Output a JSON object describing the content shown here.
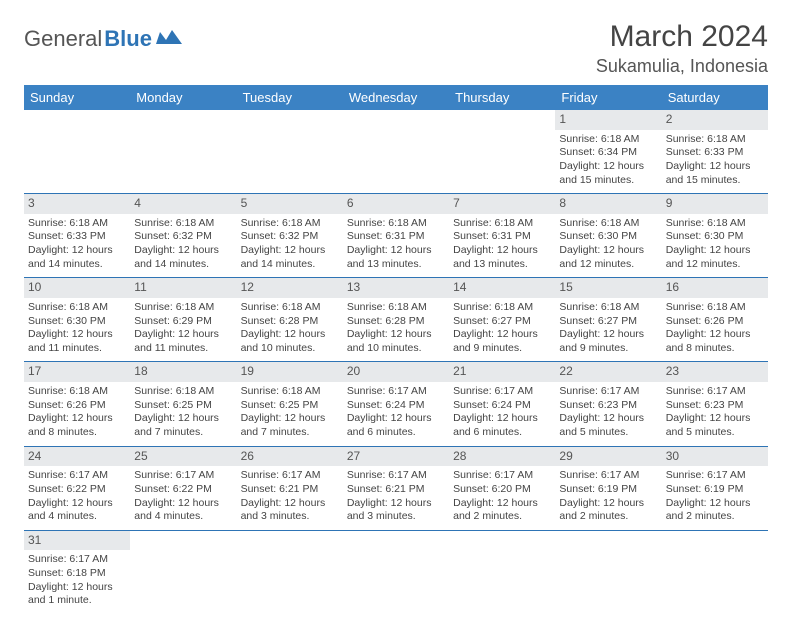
{
  "logo": {
    "text1": "General",
    "text2": "Blue"
  },
  "title": "March 2024",
  "location": "Sukamulia, Indonesia",
  "colors": {
    "header_bg": "#3b82c4",
    "header_text": "#ffffff",
    "row_divider": "#2e74b5",
    "daynum_bg": "#e7e9eb",
    "text": "#444444"
  },
  "daysOfWeek": [
    "Sunday",
    "Monday",
    "Tuesday",
    "Wednesday",
    "Thursday",
    "Friday",
    "Saturday"
  ],
  "weeks": [
    [
      {
        "n": "",
        "sr": "",
        "ss": "",
        "dl": ""
      },
      {
        "n": "",
        "sr": "",
        "ss": "",
        "dl": ""
      },
      {
        "n": "",
        "sr": "",
        "ss": "",
        "dl": ""
      },
      {
        "n": "",
        "sr": "",
        "ss": "",
        "dl": ""
      },
      {
        "n": "",
        "sr": "",
        "ss": "",
        "dl": ""
      },
      {
        "n": "1",
        "sr": "Sunrise: 6:18 AM",
        "ss": "Sunset: 6:34 PM",
        "dl": "Daylight: 12 hours and 15 minutes."
      },
      {
        "n": "2",
        "sr": "Sunrise: 6:18 AM",
        "ss": "Sunset: 6:33 PM",
        "dl": "Daylight: 12 hours and 15 minutes."
      }
    ],
    [
      {
        "n": "3",
        "sr": "Sunrise: 6:18 AM",
        "ss": "Sunset: 6:33 PM",
        "dl": "Daylight: 12 hours and 14 minutes."
      },
      {
        "n": "4",
        "sr": "Sunrise: 6:18 AM",
        "ss": "Sunset: 6:32 PM",
        "dl": "Daylight: 12 hours and 14 minutes."
      },
      {
        "n": "5",
        "sr": "Sunrise: 6:18 AM",
        "ss": "Sunset: 6:32 PM",
        "dl": "Daylight: 12 hours and 14 minutes."
      },
      {
        "n": "6",
        "sr": "Sunrise: 6:18 AM",
        "ss": "Sunset: 6:31 PM",
        "dl": "Daylight: 12 hours and 13 minutes."
      },
      {
        "n": "7",
        "sr": "Sunrise: 6:18 AM",
        "ss": "Sunset: 6:31 PM",
        "dl": "Daylight: 12 hours and 13 minutes."
      },
      {
        "n": "8",
        "sr": "Sunrise: 6:18 AM",
        "ss": "Sunset: 6:30 PM",
        "dl": "Daylight: 12 hours and 12 minutes."
      },
      {
        "n": "9",
        "sr": "Sunrise: 6:18 AM",
        "ss": "Sunset: 6:30 PM",
        "dl": "Daylight: 12 hours and 12 minutes."
      }
    ],
    [
      {
        "n": "10",
        "sr": "Sunrise: 6:18 AM",
        "ss": "Sunset: 6:30 PM",
        "dl": "Daylight: 12 hours and 11 minutes."
      },
      {
        "n": "11",
        "sr": "Sunrise: 6:18 AM",
        "ss": "Sunset: 6:29 PM",
        "dl": "Daylight: 12 hours and 11 minutes."
      },
      {
        "n": "12",
        "sr": "Sunrise: 6:18 AM",
        "ss": "Sunset: 6:28 PM",
        "dl": "Daylight: 12 hours and 10 minutes."
      },
      {
        "n": "13",
        "sr": "Sunrise: 6:18 AM",
        "ss": "Sunset: 6:28 PM",
        "dl": "Daylight: 12 hours and 10 minutes."
      },
      {
        "n": "14",
        "sr": "Sunrise: 6:18 AM",
        "ss": "Sunset: 6:27 PM",
        "dl": "Daylight: 12 hours and 9 minutes."
      },
      {
        "n": "15",
        "sr": "Sunrise: 6:18 AM",
        "ss": "Sunset: 6:27 PM",
        "dl": "Daylight: 12 hours and 9 minutes."
      },
      {
        "n": "16",
        "sr": "Sunrise: 6:18 AM",
        "ss": "Sunset: 6:26 PM",
        "dl": "Daylight: 12 hours and 8 minutes."
      }
    ],
    [
      {
        "n": "17",
        "sr": "Sunrise: 6:18 AM",
        "ss": "Sunset: 6:26 PM",
        "dl": "Daylight: 12 hours and 8 minutes."
      },
      {
        "n": "18",
        "sr": "Sunrise: 6:18 AM",
        "ss": "Sunset: 6:25 PM",
        "dl": "Daylight: 12 hours and 7 minutes."
      },
      {
        "n": "19",
        "sr": "Sunrise: 6:18 AM",
        "ss": "Sunset: 6:25 PM",
        "dl": "Daylight: 12 hours and 7 minutes."
      },
      {
        "n": "20",
        "sr": "Sunrise: 6:17 AM",
        "ss": "Sunset: 6:24 PM",
        "dl": "Daylight: 12 hours and 6 minutes."
      },
      {
        "n": "21",
        "sr": "Sunrise: 6:17 AM",
        "ss": "Sunset: 6:24 PM",
        "dl": "Daylight: 12 hours and 6 minutes."
      },
      {
        "n": "22",
        "sr": "Sunrise: 6:17 AM",
        "ss": "Sunset: 6:23 PM",
        "dl": "Daylight: 12 hours and 5 minutes."
      },
      {
        "n": "23",
        "sr": "Sunrise: 6:17 AM",
        "ss": "Sunset: 6:23 PM",
        "dl": "Daylight: 12 hours and 5 minutes."
      }
    ],
    [
      {
        "n": "24",
        "sr": "Sunrise: 6:17 AM",
        "ss": "Sunset: 6:22 PM",
        "dl": "Daylight: 12 hours and 4 minutes."
      },
      {
        "n": "25",
        "sr": "Sunrise: 6:17 AM",
        "ss": "Sunset: 6:22 PM",
        "dl": "Daylight: 12 hours and 4 minutes."
      },
      {
        "n": "26",
        "sr": "Sunrise: 6:17 AM",
        "ss": "Sunset: 6:21 PM",
        "dl": "Daylight: 12 hours and 3 minutes."
      },
      {
        "n": "27",
        "sr": "Sunrise: 6:17 AM",
        "ss": "Sunset: 6:21 PM",
        "dl": "Daylight: 12 hours and 3 minutes."
      },
      {
        "n": "28",
        "sr": "Sunrise: 6:17 AM",
        "ss": "Sunset: 6:20 PM",
        "dl": "Daylight: 12 hours and 2 minutes."
      },
      {
        "n": "29",
        "sr": "Sunrise: 6:17 AM",
        "ss": "Sunset: 6:19 PM",
        "dl": "Daylight: 12 hours and 2 minutes."
      },
      {
        "n": "30",
        "sr": "Sunrise: 6:17 AM",
        "ss": "Sunset: 6:19 PM",
        "dl": "Daylight: 12 hours and 2 minutes."
      }
    ],
    [
      {
        "n": "31",
        "sr": "Sunrise: 6:17 AM",
        "ss": "Sunset: 6:18 PM",
        "dl": "Daylight: 12 hours and 1 minute."
      },
      {
        "n": "",
        "sr": "",
        "ss": "",
        "dl": ""
      },
      {
        "n": "",
        "sr": "",
        "ss": "",
        "dl": ""
      },
      {
        "n": "",
        "sr": "",
        "ss": "",
        "dl": ""
      },
      {
        "n": "",
        "sr": "",
        "ss": "",
        "dl": ""
      },
      {
        "n": "",
        "sr": "",
        "ss": "",
        "dl": ""
      },
      {
        "n": "",
        "sr": "",
        "ss": "",
        "dl": ""
      }
    ]
  ]
}
